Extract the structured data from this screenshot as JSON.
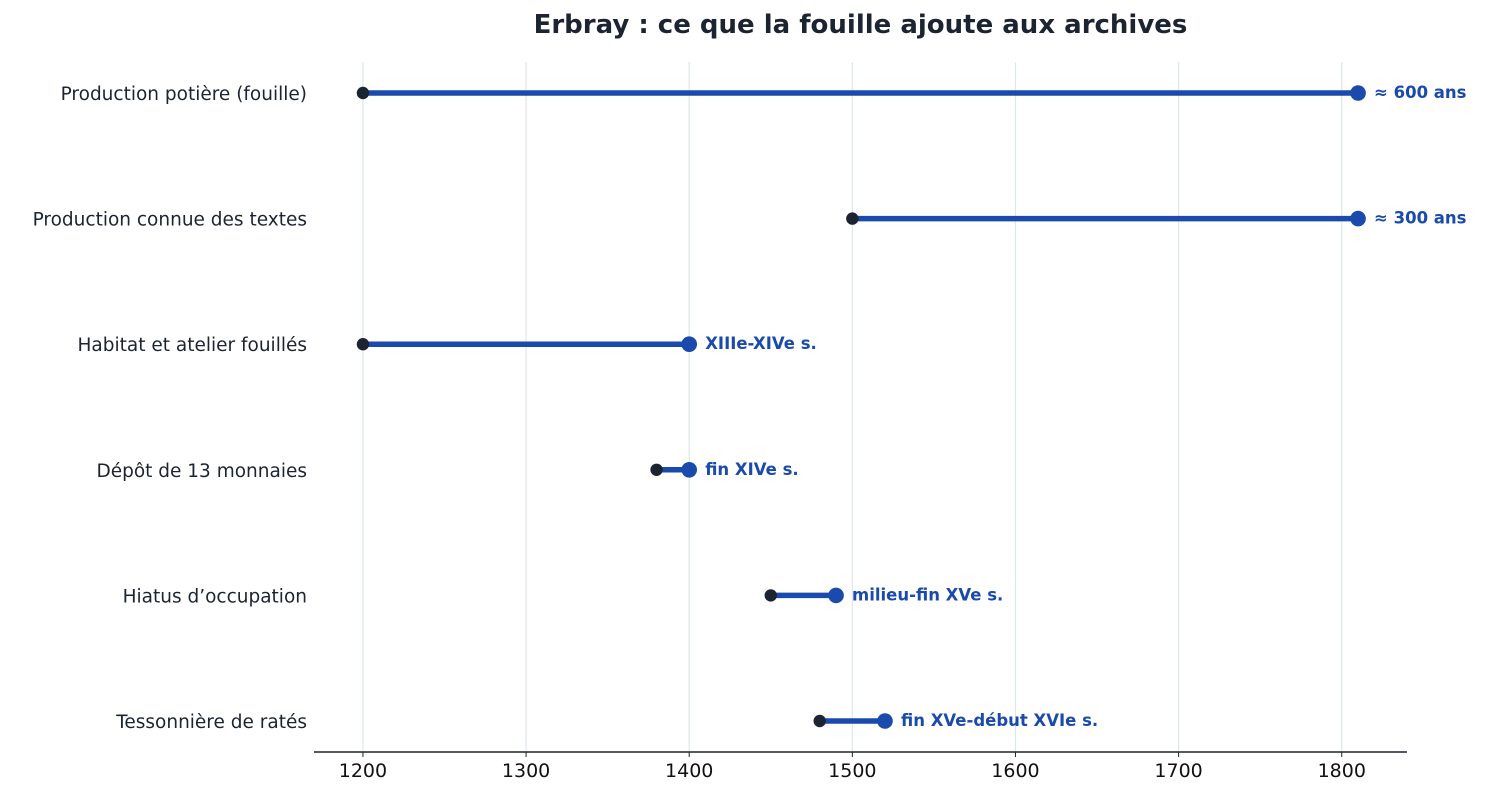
{
  "chart_data": {
    "type": "dumbbell",
    "title": "Erbray : ce que la fouille ajoute aux archives",
    "xlabel": "",
    "ylabel": "",
    "xlim": [
      1170,
      1840
    ],
    "xticks": [
      1200,
      1300,
      1400,
      1500,
      1600,
      1700,
      1800
    ],
    "grid": "vertical",
    "rows": [
      {
        "label": "Production potière (fouille)",
        "start": 1200,
        "end": 1810,
        "annotation": "≈ 600 ans"
      },
      {
        "label": "Production connue des textes",
        "start": 1500,
        "end": 1810,
        "annotation": "≈ 300 ans"
      },
      {
        "label": "Habitat et atelier fouillés",
        "start": 1200,
        "end": 1400,
        "annotation": "XIIIe-XIVe s."
      },
      {
        "label": "Dépôt de 13 monnaies",
        "start": 1380,
        "end": 1400,
        "annotation": "fin XIVe s."
      },
      {
        "label": "Hiatus d’occupation",
        "start": 1450,
        "end": 1490,
        "annotation": "milieu-fin XVe s."
      },
      {
        "label": "Tessonnière de ratés",
        "start": 1480,
        "end": 1520,
        "annotation": "fin XVe-début XVIe s."
      }
    ],
    "colors": {
      "line": "#1a4aab",
      "end_marker": "#1a4aab",
      "start_marker": "#1c2431",
      "annotation": "#1a4aab",
      "label": "#1c2431",
      "grid": "#dde6ea",
      "axis": "#1c2431"
    }
  }
}
